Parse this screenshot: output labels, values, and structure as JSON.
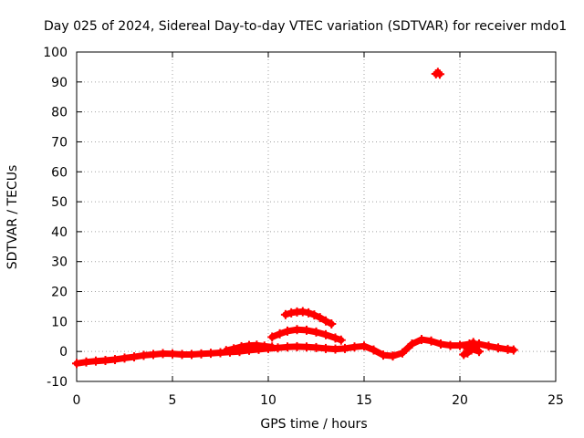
{
  "chart_data": {
    "type": "scatter",
    "title": "Day 025 of 2024, Sidereal Day-to-day VTEC variation (SDTVAR) for receiver mdo1",
    "xlabel": "GPS time / hours",
    "ylabel": "SDTVAR / TECUs",
    "xlim": [
      0,
      25
    ],
    "ylim": [
      -10,
      100
    ],
    "xticks": [
      "0",
      "5",
      "10",
      "15",
      "20",
      "25"
    ],
    "yticks": [
      "-10",
      "0",
      "10",
      "20",
      "30",
      "40",
      "50",
      "60",
      "70",
      "80",
      "90",
      "100"
    ],
    "grid": true,
    "marker_color": "#ff0000",
    "series": [
      {
        "name": "main-band",
        "x": [
          0,
          0.5,
          1,
          1.5,
          2,
          2.5,
          3,
          3.5,
          4,
          4.5,
          5,
          5.5,
          6,
          6.5,
          7,
          7.5,
          8,
          8.5,
          9,
          9.5,
          10,
          10.5,
          11,
          11.5,
          12,
          12.5,
          13,
          13.5,
          14,
          14.5,
          15,
          15.5,
          16,
          16.5,
          17,
          17.5,
          18,
          18.5,
          19,
          19.5,
          20,
          20.5,
          21,
          21.5,
          22,
          22.5,
          22.8
        ],
        "y": [
          -4,
          -3.5,
          -3.2,
          -3,
          -2.7,
          -2.2,
          -1.8,
          -1.3,
          -1,
          -0.7,
          -0.8,
          -1,
          -1,
          -0.8,
          -0.6,
          -0.4,
          -0.2,
          0,
          0.4,
          0.7,
          1,
          1.2,
          1.5,
          1.6,
          1.5,
          1.3,
          1,
          0.8,
          1,
          1.5,
          1.8,
          0.5,
          -1.2,
          -1.5,
          -0.5,
          2.5,
          4,
          3.5,
          2.5,
          2,
          2,
          2.5,
          2.5,
          1.8,
          1.2,
          0.7,
          0.5
        ]
      },
      {
        "name": "hump-band",
        "x": [
          7.8,
          8.2,
          8.6,
          9,
          9.4,
          9.8,
          10.2
        ],
        "y": [
          0.3,
          0.9,
          1.6,
          2,
          2.1,
          1.8,
          1.5
        ]
      },
      {
        "name": "scatter-band-20h",
        "x": [
          20.2,
          20.4,
          20.6,
          20.8,
          21,
          20.3,
          20.7
        ],
        "y": [
          -1,
          -0.5,
          0.5,
          1,
          0,
          1.5,
          3
        ]
      },
      {
        "name": "mid-arc",
        "x": [
          10.2,
          10.6,
          11,
          11.5,
          12,
          12.5,
          13,
          13.5,
          13.8
        ],
        "y": [
          4.8,
          5.9,
          6.8,
          7.3,
          7.1,
          6.5,
          5.6,
          4.5,
          3.8
        ]
      },
      {
        "name": "upper-arc",
        "x": [
          10.9,
          11.2,
          11.5,
          11.8,
          12.1,
          12.4,
          12.7,
          13,
          13.3
        ],
        "y": [
          12.3,
          12.9,
          13.2,
          13.3,
          12.9,
          12.2,
          11.3,
          10.2,
          9.2
        ]
      },
      {
        "name": "outlier",
        "x": [
          18.75,
          18.85,
          18.95
        ],
        "y": [
          92.7,
          93.2,
          92.6
        ]
      }
    ]
  }
}
